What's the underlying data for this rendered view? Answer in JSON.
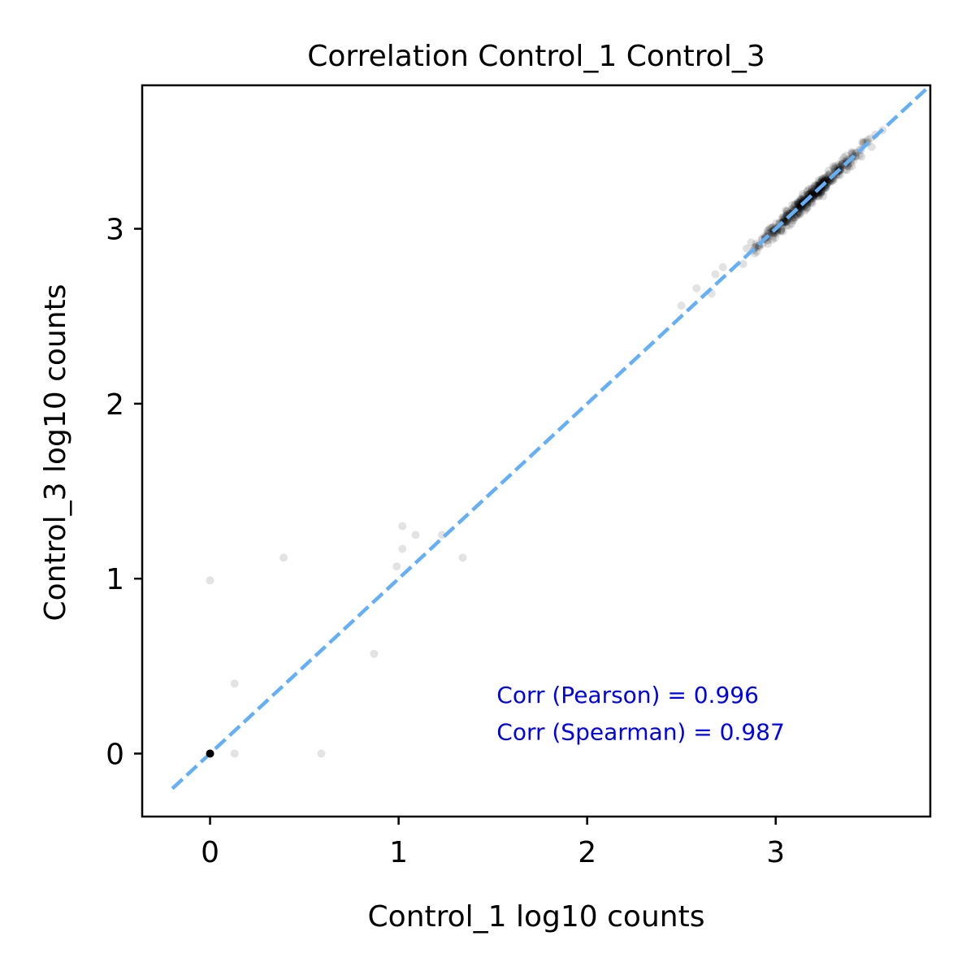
{
  "chart_data": {
    "type": "scatter",
    "title": "Correlation Control_1 Control_3",
    "xlabel": "Control_1 log10 counts",
    "ylabel": "Control_3 log10 counts",
    "xlim": [
      -0.36,
      3.82
    ],
    "ylim": [
      -0.36,
      3.82
    ],
    "xticks": [
      0,
      1,
      2,
      3
    ],
    "yticks": [
      0,
      1,
      2,
      3
    ],
    "tick_labels": [
      "0",
      "1",
      "2",
      "3"
    ],
    "grid": false,
    "identity_line": {
      "from": [
        -0.2,
        -0.2
      ],
      "to": [
        3.82,
        3.82
      ],
      "color": "#64aff5",
      "style": "dashed"
    },
    "annotations": [
      {
        "text": "Corr (Pearson) = 0.996",
        "x": 1.52,
        "y": 0.29,
        "color": "#0000ee"
      },
      {
        "text": "Corr (Spearman) = 0.987",
        "x": 1.52,
        "y": 0.08,
        "color": "#0000ee"
      }
    ],
    "outliers": [
      [
        0.0,
        0.0
      ],
      [
        0.0,
        0.99
      ],
      [
        0.13,
        0.4
      ],
      [
        0.13,
        0.0
      ],
      [
        0.39,
        1.12
      ],
      [
        0.59,
        0.0
      ],
      [
        0.87,
        0.57
      ],
      [
        0.99,
        1.07
      ],
      [
        1.02,
        1.17
      ],
      [
        1.02,
        1.3
      ],
      [
        1.09,
        1.25
      ],
      [
        1.23,
        1.25
      ],
      [
        1.34,
        1.12
      ],
      [
        2.5,
        2.56
      ],
      [
        2.58,
        2.66
      ],
      [
        2.66,
        2.63
      ],
      [
        2.68,
        2.74
      ],
      [
        2.72,
        2.78
      ]
    ],
    "cluster": {
      "description": "dense point cloud along the diagonal",
      "x_range": [
        2.75,
        3.65
      ],
      "y_range": [
        2.78,
        3.63
      ],
      "n_points": 420
    },
    "point_color": "#000000",
    "zero_point": [
      0.0,
      0.0
    ]
  }
}
